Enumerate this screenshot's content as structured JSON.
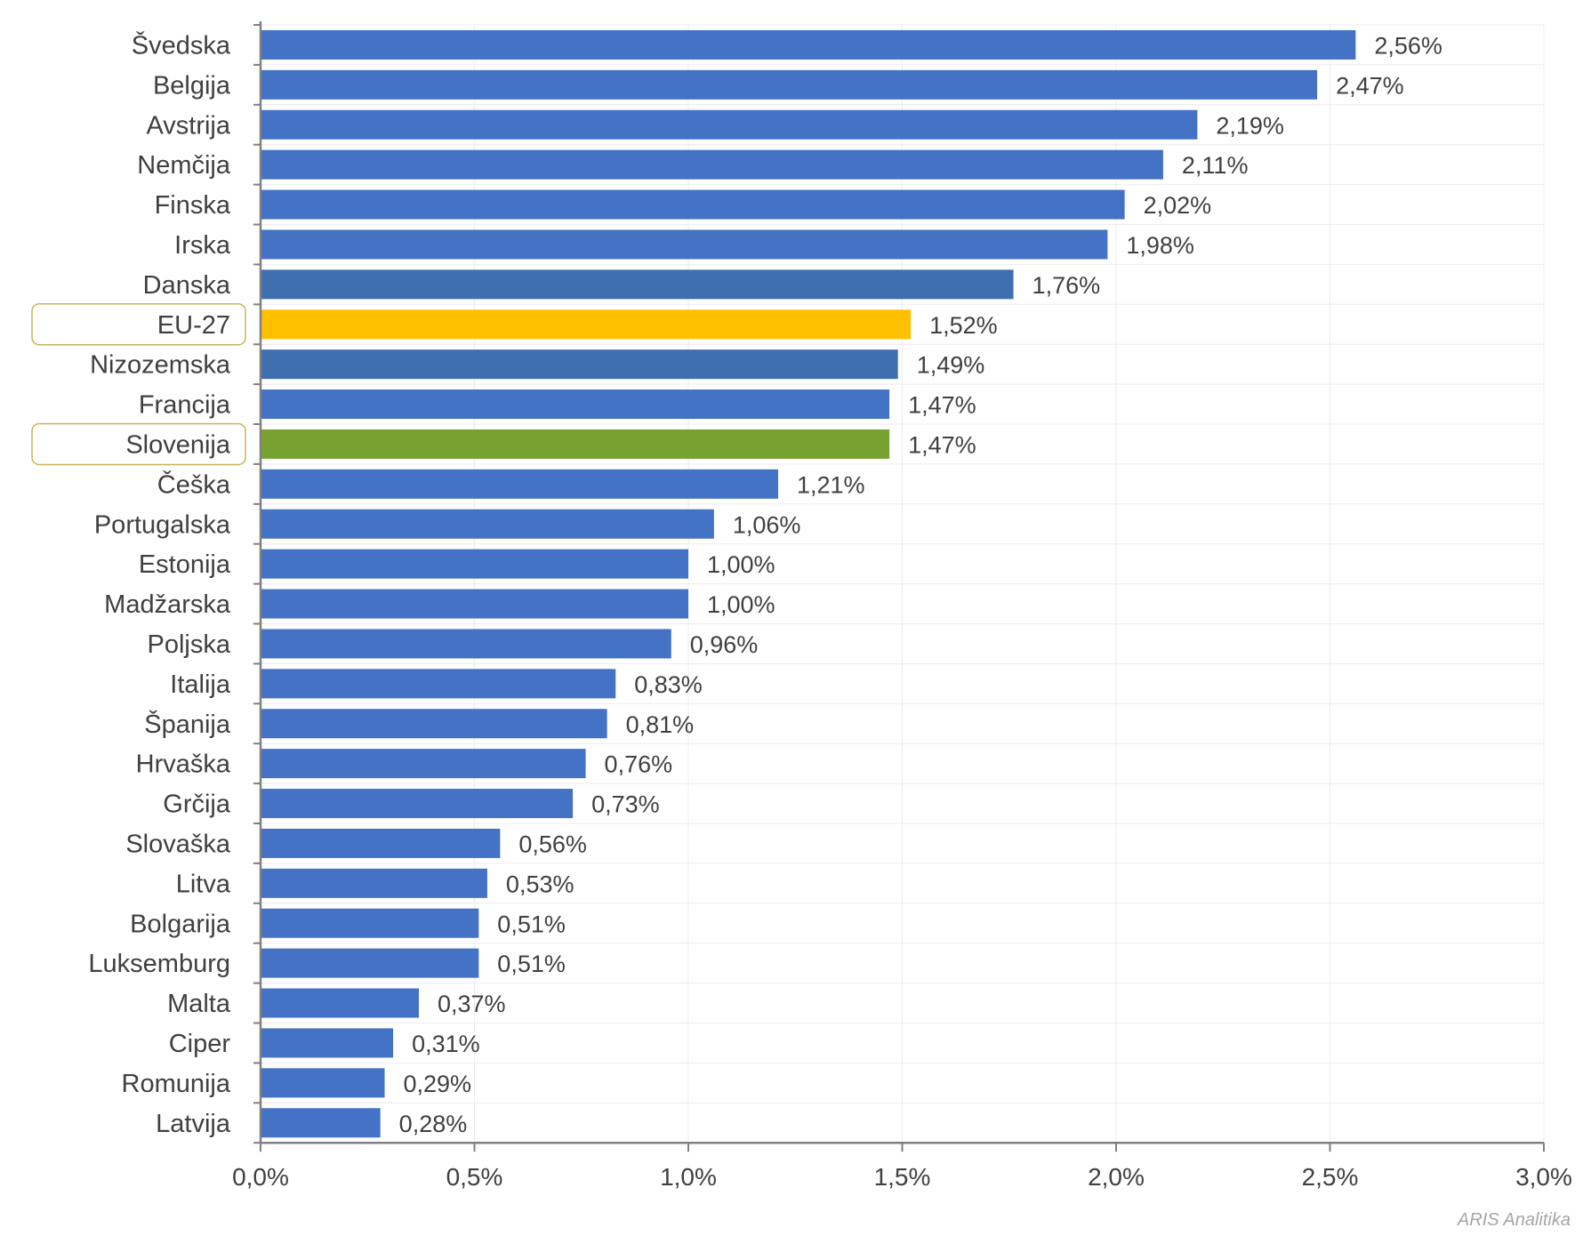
{
  "chart_data": {
    "type": "bar",
    "orientation": "horizontal",
    "categories": [
      "Švedska",
      "Belgija",
      "Avstrija",
      "Nemčija",
      "Finska",
      "Irska",
      "Danska",
      "EU-27",
      "Nizozemska",
      "Francija",
      "Slovenija",
      "Češka",
      "Portugalska",
      "Estonija",
      "Madžarska",
      "Poljska",
      "Italija",
      "Španija",
      "Hrvaška",
      "Grčija",
      "Slovaška",
      "Litva",
      "Bolgarija",
      "Luksemburg",
      "Malta",
      "Ciper",
      "Romunija",
      "Latvija"
    ],
    "values": [
      2.56,
      2.47,
      2.19,
      2.11,
      2.02,
      1.98,
      1.76,
      1.52,
      1.49,
      1.47,
      1.47,
      1.21,
      1.06,
      1.0,
      1.0,
      0.96,
      0.83,
      0.81,
      0.76,
      0.73,
      0.56,
      0.53,
      0.51,
      0.51,
      0.37,
      0.31,
      0.29,
      0.28
    ],
    "value_labels": [
      "2,56%",
      "2,47%",
      "2,19%",
      "2,11%",
      "2,02%",
      "1,98%",
      "1,76%",
      "1,52%",
      "1,49%",
      "1,47%",
      "1,47%",
      "1,21%",
      "1,06%",
      "1,00%",
      "1,00%",
      "0,96%",
      "0,83%",
      "0,81%",
      "0,76%",
      "0,73%",
      "0,56%",
      "0,53%",
      "0,51%",
      "0,51%",
      "0,37%",
      "0,31%",
      "0,29%",
      "0,28%"
    ],
    "xlim": [
      0,
      3.0
    ],
    "x_ticks": [
      0,
      0.5,
      1.0,
      1.5,
      2.0,
      2.5,
      3.0
    ],
    "x_tick_labels": [
      "0,0%",
      "0,5%",
      "1,0%",
      "1,5%",
      "2,0%",
      "2,5%",
      "3,0%"
    ],
    "title": "",
    "xlabel": "",
    "ylabel": "",
    "grid": true,
    "highlighted": [
      "EU-27",
      "Slovenija"
    ],
    "colors": {
      "default": "#4472c4",
      "Danska": "#3f6fae",
      "Nizozemska": "#3f6fae",
      "EU-27": "#ffc000",
      "Slovenija": "#78a22f",
      "highlight_box": "#c9b458",
      "axis": "#808080",
      "grid": "#ececec"
    },
    "source": "ARIS Analitika"
  }
}
